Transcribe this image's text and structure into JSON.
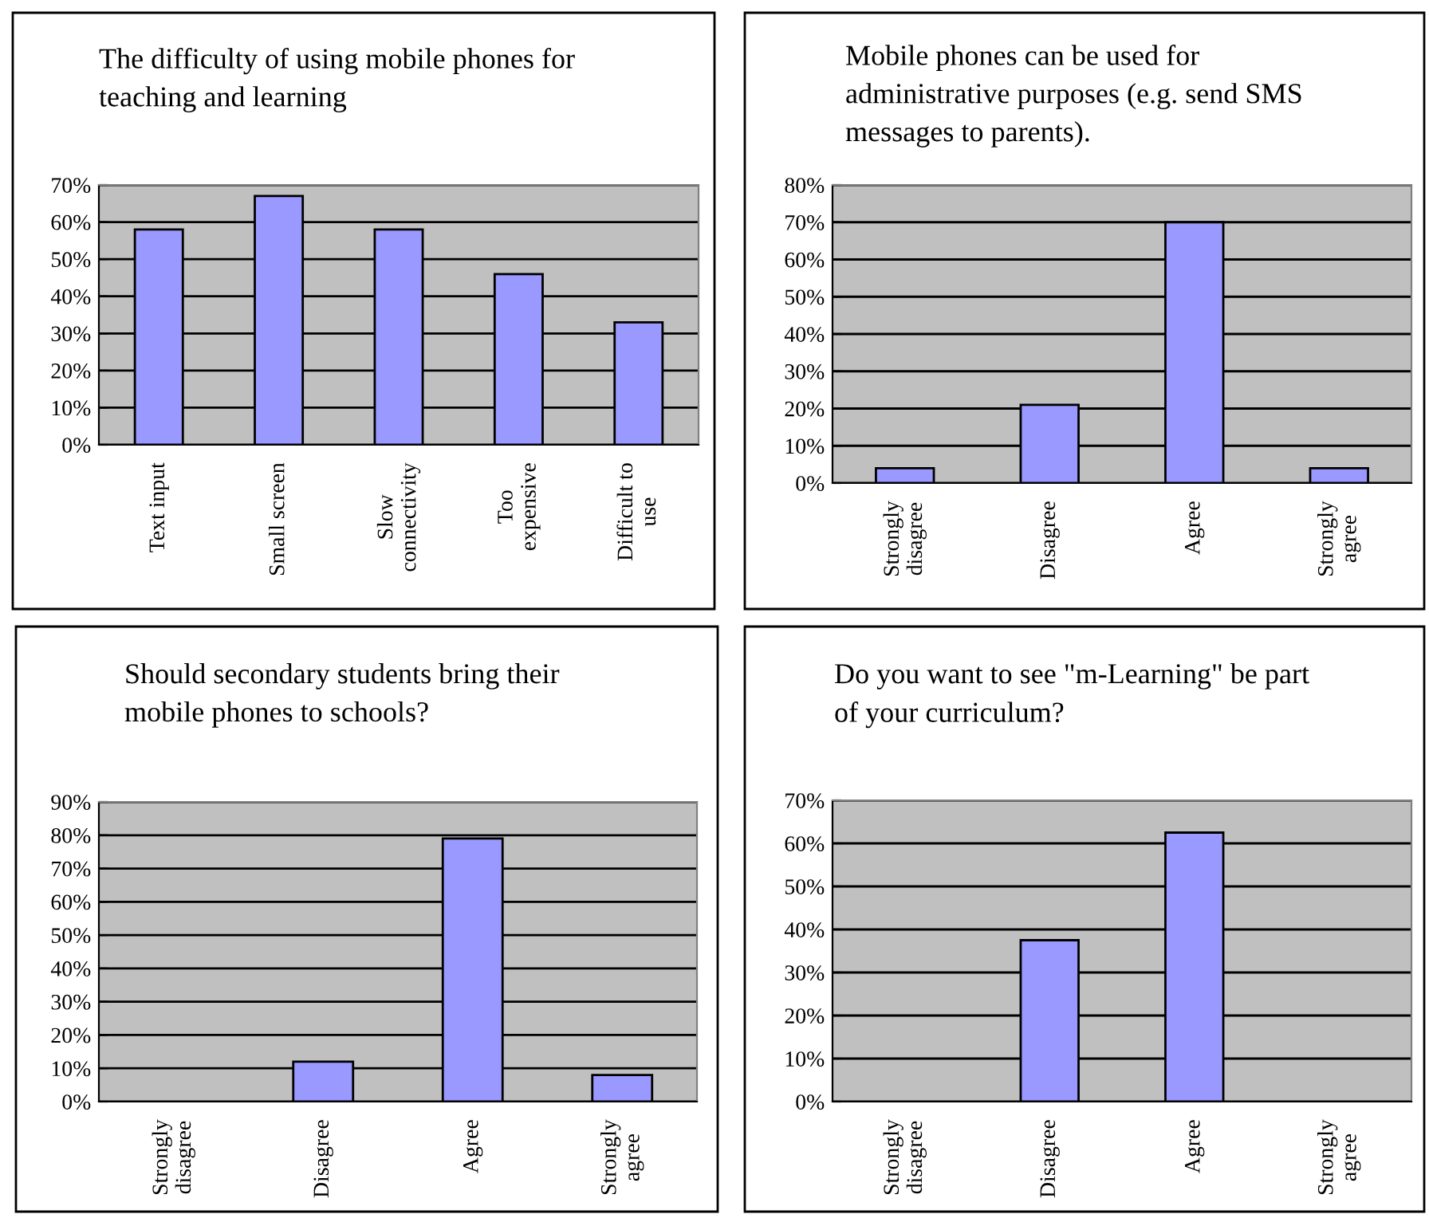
{
  "chart_data": [
    {
      "type": "bar",
      "title": "The difficulty of using mobile phones for\nteaching and learning",
      "categories": [
        "Text input",
        "Small screen",
        "Slow\nconnectivity",
        "Too\nexpensive",
        "Difficult to\nuse"
      ],
      "values": [
        58,
        67,
        58,
        46,
        33
      ],
      "color": "#9999ff",
      "ylim": [
        0,
        70
      ],
      "yticks": [
        {
          "value": 0,
          "label": "0%"
        },
        {
          "value": 10,
          "label": "10%"
        },
        {
          "value": 20,
          "label": "20%"
        },
        {
          "value": 30,
          "label": "30%"
        },
        {
          "value": 40,
          "label": "40%"
        },
        {
          "value": 50,
          "label": "50%"
        },
        {
          "value": 60,
          "label": "60%"
        },
        {
          "value": 70,
          "label": "70%"
        }
      ],
      "grid": "y"
    },
    {
      "type": "bar",
      "title": "Mobile phones can be used for\nadministrative purposes (e.g. send SMS\nmessages to parents).",
      "categories": [
        "Strongly\ndisagree",
        "Disagree",
        "Agree",
        "Strongly\nagree"
      ],
      "values": [
        4,
        21,
        70,
        4
      ],
      "color": "#9999ff",
      "ylim": [
        0,
        80
      ],
      "yticks": [
        {
          "value": 0,
          "label": "0%"
        },
        {
          "value": 10,
          "label": "10%"
        },
        {
          "value": 20,
          "label": "20%"
        },
        {
          "value": 30,
          "label": "30%"
        },
        {
          "value": 40,
          "label": "40%"
        },
        {
          "value": 50,
          "label": "50%"
        },
        {
          "value": 60,
          "label": "60%"
        },
        {
          "value": 70,
          "label": "70%"
        },
        {
          "value": 80,
          "label": "80%"
        }
      ],
      "grid": "y"
    },
    {
      "type": "bar",
      "title": "Should secondary students bring their\nmobile phones to schools?",
      "categories": [
        "Strongly\ndisagree",
        "Disagree",
        "Agree",
        "Strongly\nagree"
      ],
      "values": [
        0,
        12,
        79,
        8
      ],
      "color": "#9999ff",
      "ylim": [
        0,
        90
      ],
      "yticks": [
        {
          "value": 0,
          "label": "0%"
        },
        {
          "value": 10,
          "label": "10%"
        },
        {
          "value": 20,
          "label": "20%"
        },
        {
          "value": 30,
          "label": "30%"
        },
        {
          "value": 40,
          "label": "40%"
        },
        {
          "value": 50,
          "label": "50%"
        },
        {
          "value": 60,
          "label": "60%"
        },
        {
          "value": 70,
          "label": "70%"
        },
        {
          "value": 80,
          "label": "80%"
        },
        {
          "value": 90,
          "label": "90%"
        }
      ],
      "grid": "y"
    },
    {
      "type": "bar",
      "title": "Do you want to see \"m-Learning\" be part\nof your curriculum?",
      "categories": [
        "Strongly\ndisagree",
        "Disagree",
        "Agree",
        "Strongly\nagree"
      ],
      "values": [
        0,
        37.5,
        62.5,
        0
      ],
      "color": "#9999ff",
      "ylim": [
        0,
        70
      ],
      "yticks": [
        {
          "value": 0,
          "label": "0%"
        },
        {
          "value": 10,
          "label": "10%"
        },
        {
          "value": 20,
          "label": "20%"
        },
        {
          "value": 30,
          "label": "30%"
        },
        {
          "value": 40,
          "label": "40%"
        },
        {
          "value": 50,
          "label": "50%"
        },
        {
          "value": 60,
          "label": "60%"
        },
        {
          "value": 70,
          "label": "70%"
        }
      ],
      "grid": "y"
    }
  ]
}
